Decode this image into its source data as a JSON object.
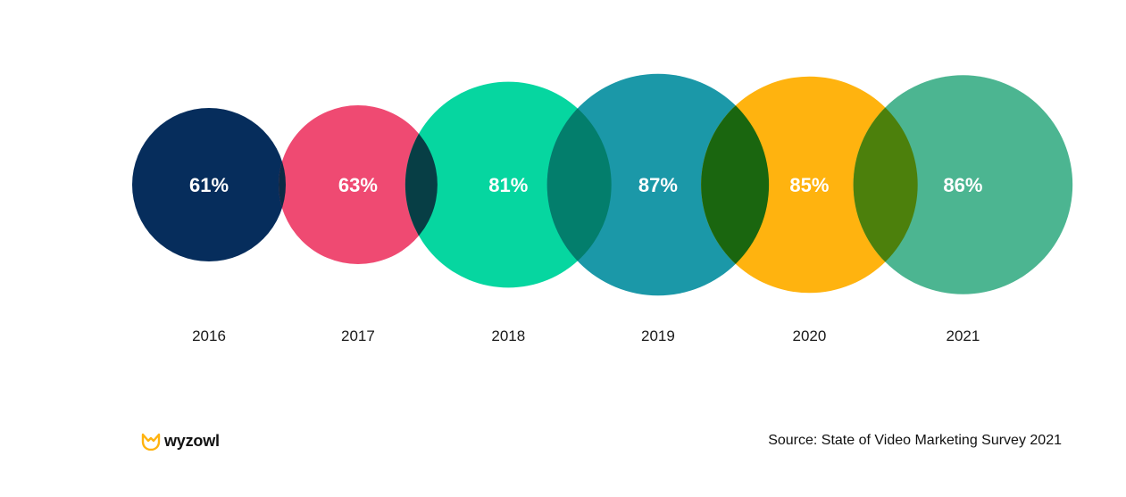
{
  "chart_data": {
    "type": "bubble",
    "categories": [
      "2016",
      "2017",
      "2018",
      "2019",
      "2020",
      "2021"
    ],
    "values": [
      61,
      63,
      81,
      87,
      85,
      86
    ],
    "value_labels": [
      "61%",
      "63%",
      "81%",
      "87%",
      "85%",
      "86%"
    ],
    "unit": "%",
    "colors": [
      "#062d5c",
      "#ef4a72",
      "#06d6a0",
      "#1b98a8",
      "#ffb30f",
      "#4cb591"
    ],
    "overlap_colors": [
      "#0c2a45",
      "#073e45",
      "#037e6c",
      "#1a660f",
      "#4c800c"
    ],
    "legend": "none",
    "grid": false
  },
  "footer": {
    "brand": "wyzowl",
    "brand_icon": "wyzowl-owl-logo",
    "brand_color": "#ffb30f",
    "source": "Source: State of Video Marketing Survey 2021"
  }
}
